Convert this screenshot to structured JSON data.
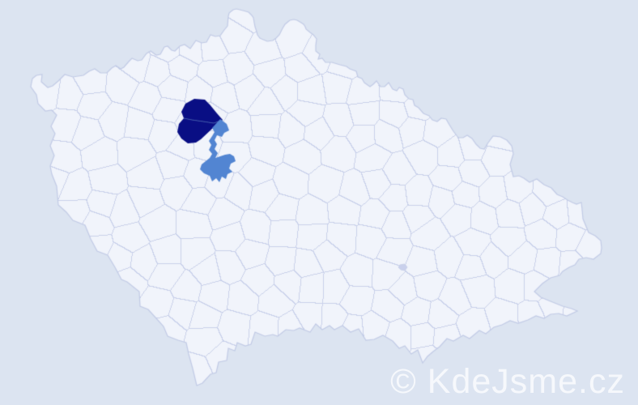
{
  "watermark": {
    "text": "© KdeJsme.cz"
  },
  "map": {
    "type": "choropleth",
    "country": "Czechia",
    "subdivision_style": "administrative districts",
    "highlighted_regions": [
      {
        "id": "primary-highlight",
        "color": "#090e84",
        "district_count": 2
      },
      {
        "id": "secondary-highlight",
        "color": "#5285d2",
        "district_count": 1
      }
    ],
    "small_marked_region": {
      "color": "#c9d0ec"
    }
  },
  "colors": {
    "background": "#dce4f1",
    "land": "#f1f4fb",
    "district_border": "#c9d1ea",
    "country_border": "#c2cbe6",
    "highlight_primary": "#090e84",
    "highlight_secondary": "#5285d2",
    "highlight_divider": "#3c55a8",
    "small_region_fill": "#c9d0ec",
    "watermark_text": "#ffffff",
    "watermark_opacity": 0.74
  }
}
